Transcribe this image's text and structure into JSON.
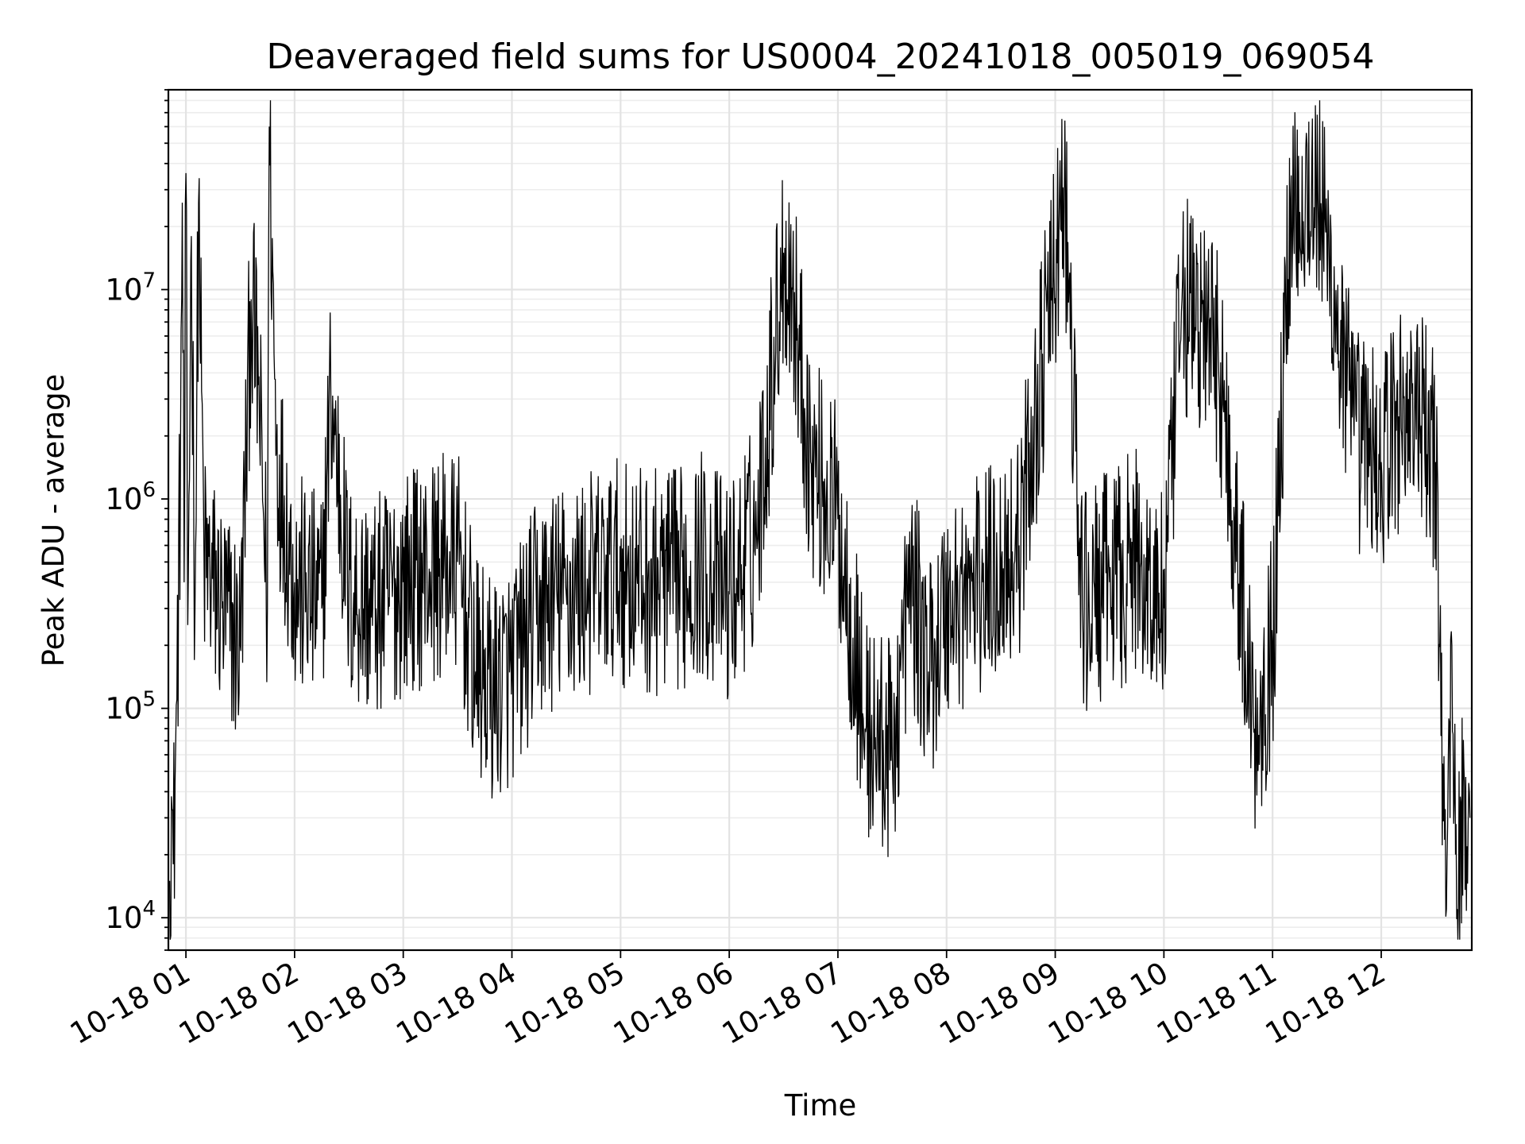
{
  "chart_data": {
    "type": "line",
    "title": "Deaveraged field sums for US0004_20241018_005019_069054",
    "xlabel": "Time",
    "ylabel": "Peak ADU - average",
    "yscale": "log",
    "ylim": [
      7000,
      90000000
    ],
    "xlim": [
      "2024-10-18 00:50:19",
      "2024-10-18 12:50:00"
    ],
    "grid": true,
    "line_color": "#000000",
    "x_ticks": [
      {
        "t": "2024-10-18 01:00",
        "label": "10-18 01"
      },
      {
        "t": "2024-10-18 02:00",
        "label": "10-18 02"
      },
      {
        "t": "2024-10-18 03:00",
        "label": "10-18 03"
      },
      {
        "t": "2024-10-18 04:00",
        "label": "10-18 04"
      },
      {
        "t": "2024-10-18 05:00",
        "label": "10-18 05"
      },
      {
        "t": "2024-10-18 06:00",
        "label": "10-18 06"
      },
      {
        "t": "2024-10-18 07:00",
        "label": "10-18 07"
      },
      {
        "t": "2024-10-18 08:00",
        "label": "10-18 08"
      },
      {
        "t": "2024-10-18 09:00",
        "label": "10-18 09"
      },
      {
        "t": "2024-10-18 10:00",
        "label": "10-18 10"
      },
      {
        "t": "2024-10-18 11:00",
        "label": "10-18 11"
      },
      {
        "t": "2024-10-18 12:00",
        "label": "10-18 12"
      }
    ],
    "y_ticks": [
      {
        "value": 10000,
        "base": "10",
        "exp": "4"
      },
      {
        "value": 100000,
        "base": "10",
        "exp": "5"
      },
      {
        "value": 1000000,
        "base": "10",
        "exp": "6"
      },
      {
        "value": 10000000,
        "base": "10",
        "exp": "7"
      }
    ],
    "series": [
      {
        "points": [
          [
            "2024-10-18 00:51",
            15000
          ],
          [
            "2024-10-18 00:52",
            38000
          ],
          [
            "2024-10-18 00:53",
            18000
          ],
          [
            "2024-10-18 00:55",
            110000
          ],
          [
            "2024-10-18 00:57",
            1500000
          ],
          [
            "2024-10-18 00:58",
            26000000
          ],
          [
            "2024-10-18 00:59",
            400000
          ],
          [
            "2024-10-18 01:00",
            36000000
          ],
          [
            "2024-10-18 01:01",
            250000
          ],
          [
            "2024-10-18 01:03",
            18000000
          ],
          [
            "2024-10-18 01:05",
            300000
          ],
          [
            "2024-10-18 01:07",
            26000000
          ],
          [
            "2024-10-18 01:10",
            500000
          ],
          [
            "2024-10-18 01:20",
            300000
          ],
          [
            "2024-10-18 01:30",
            200000
          ],
          [
            "2024-10-18 01:36",
            9000000
          ],
          [
            "2024-10-18 01:40",
            3500000
          ],
          [
            "2024-10-18 01:45",
            300000
          ],
          [
            "2024-10-18 01:46",
            60000000
          ],
          [
            "2024-10-18 01:50",
            1700000
          ],
          [
            "2024-10-18 02:00",
            400000
          ],
          [
            "2024-10-18 02:15",
            300000
          ],
          [
            "2024-10-18 02:20",
            3300000
          ],
          [
            "2024-10-18 02:30",
            350000
          ],
          [
            "2024-10-18 02:45",
            300000
          ],
          [
            "2024-10-18 03:00",
            400000
          ],
          [
            "2024-10-18 03:15",
            450000
          ],
          [
            "2024-10-18 03:30",
            500000
          ],
          [
            "2024-10-18 03:40",
            150000
          ],
          [
            "2024-10-18 03:50",
            120000
          ],
          [
            "2024-10-18 04:00",
            150000
          ],
          [
            "2024-10-18 04:15",
            300000
          ],
          [
            "2024-10-18 04:30",
            350000
          ],
          [
            "2024-10-18 04:45",
            400000
          ],
          [
            "2024-10-18 05:00",
            450000
          ],
          [
            "2024-10-18 05:15",
            400000
          ],
          [
            "2024-10-18 05:30",
            400000
          ],
          [
            "2024-10-18 05:45",
            500000
          ],
          [
            "2024-10-18 06:00",
            350000
          ],
          [
            "2024-10-18 06:15",
            700000
          ],
          [
            "2024-10-18 06:30",
            15000000
          ],
          [
            "2024-10-18 06:35",
            10000000
          ],
          [
            "2024-10-18 06:45",
            1500000
          ],
          [
            "2024-10-18 07:00",
            800000
          ],
          [
            "2024-10-18 07:15",
            80000
          ],
          [
            "2024-10-18 07:30",
            60000
          ],
          [
            "2024-10-18 07:40",
            400000
          ],
          [
            "2024-10-18 07:50",
            150000
          ],
          [
            "2024-10-18 08:00",
            300000
          ],
          [
            "2024-10-18 08:20",
            400000
          ],
          [
            "2024-10-18 08:40",
            600000
          ],
          [
            "2024-10-18 09:05",
            28000000
          ],
          [
            "2024-10-18 09:15",
            300000
          ],
          [
            "2024-10-18 09:30",
            400000
          ],
          [
            "2024-10-18 09:45",
            500000
          ],
          [
            "2024-10-18 10:00",
            300000
          ],
          [
            "2024-10-18 10:10",
            9000000
          ],
          [
            "2024-10-18 10:30",
            5000000
          ],
          [
            "2024-10-18 10:50",
            80000
          ],
          [
            "2024-10-18 11:00",
            200000
          ],
          [
            "2024-10-18 11:10",
            27000000
          ],
          [
            "2024-10-18 11:25",
            30000000
          ],
          [
            "2024-10-18 11:45",
            2000000
          ],
          [
            "2024-10-18 12:00",
            1500000
          ],
          [
            "2024-10-18 12:15",
            3000000
          ],
          [
            "2024-10-18 12:30",
            1500000
          ],
          [
            "2024-10-18 12:36",
            11000
          ],
          [
            "2024-10-18 12:39",
            200000
          ],
          [
            "2024-10-18 12:42",
            11000
          ],
          [
            "2024-10-18 12:46",
            42000
          ],
          [
            "2024-10-18 12:49",
            30000
          ]
        ]
      }
    ]
  }
}
